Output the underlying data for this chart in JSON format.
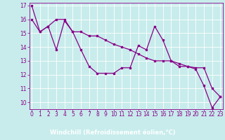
{
  "xlabel": "Windchill (Refroidissement éolien,°C)",
  "line1_x": [
    0,
    1,
    2,
    3,
    4,
    5,
    6,
    7,
    8,
    9,
    10,
    11,
    12,
    13,
    14,
    15,
    16,
    17,
    18,
    19,
    20,
    21,
    22,
    23
  ],
  "line1_y": [
    17.0,
    15.1,
    15.5,
    13.8,
    15.9,
    15.1,
    13.8,
    12.6,
    12.1,
    12.1,
    12.1,
    12.5,
    12.5,
    14.1,
    13.8,
    15.5,
    14.5,
    13.0,
    12.6,
    12.6,
    12.4,
    11.2,
    9.6,
    10.4
  ],
  "line2_x": [
    0,
    1,
    2,
    3,
    4,
    5,
    6,
    7,
    8,
    9,
    10,
    11,
    12,
    13,
    14,
    15,
    16,
    17,
    18,
    19,
    20,
    21,
    22,
    23
  ],
  "line2_y": [
    16.0,
    15.1,
    15.5,
    16.0,
    16.0,
    15.1,
    15.1,
    14.8,
    14.8,
    14.5,
    14.2,
    14.0,
    13.8,
    13.5,
    13.2,
    13.0,
    13.0,
    13.0,
    12.8,
    12.6,
    12.5,
    12.5,
    11.0,
    10.4
  ],
  "line_color": "#880088",
  "marker": "s",
  "markersize": 2.0,
  "linewidth": 0.9,
  "bg_color": "#c8ecec",
  "grid_color": "#ffffff",
  "xlabel_bg": "#6600aa",
  "ylim": [
    9.5,
    17.2
  ],
  "xlim": [
    -0.3,
    23.3
  ],
  "yticks": [
    10,
    11,
    12,
    13,
    14,
    15,
    16,
    17
  ],
  "xticks": [
    0,
    1,
    2,
    3,
    4,
    5,
    6,
    7,
    8,
    9,
    10,
    11,
    12,
    13,
    14,
    15,
    16,
    17,
    18,
    19,
    20,
    21,
    22,
    23
  ],
  "tick_fontsize": 5.5,
  "xlabel_fontsize": 6.0
}
